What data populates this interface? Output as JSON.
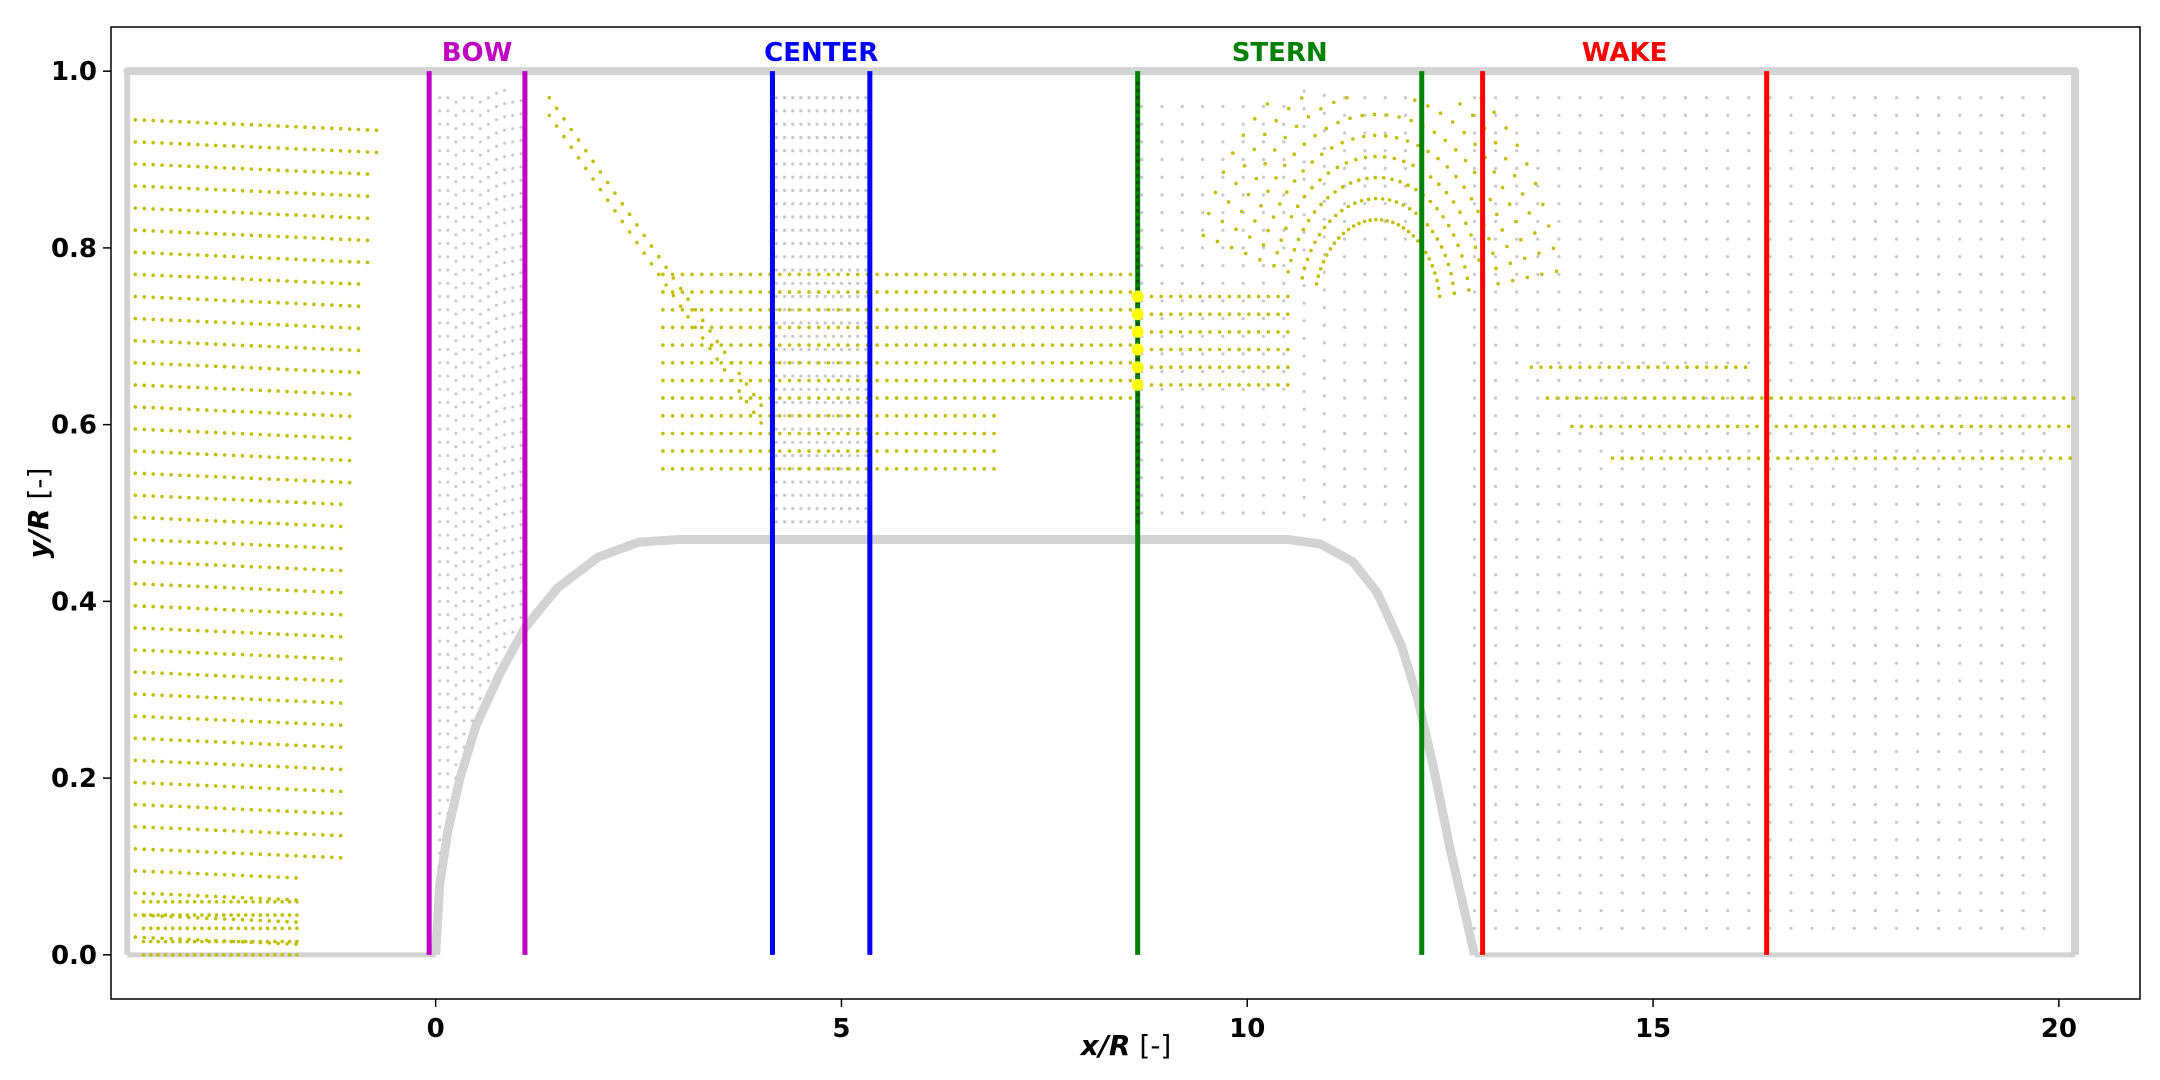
{
  "chart_data": {
    "type": "scatter",
    "title": "",
    "xlabel_var": "x/R",
    "xlabel_unit": " [-]",
    "ylabel_var": "y/R",
    "ylabel_unit": " [-]",
    "xlim": [
      -4.0,
      21.0
    ],
    "ylim": [
      -0.05,
      1.05
    ],
    "xticks": [
      0,
      5,
      10,
      15,
      20
    ],
    "yticks": [
      0.0,
      0.2,
      0.4,
      0.6,
      0.8,
      1.0
    ],
    "xtick_labels": [
      "0",
      "5",
      "10",
      "15",
      "20"
    ],
    "ytick_labels": [
      "0.0",
      "0.2",
      "0.4",
      "0.6",
      "0.8",
      "1.0"
    ],
    "grid": false,
    "colors": {
      "domain_boundary": "#d3d3d3",
      "grid_points": "#c8c8c8",
      "particles": "#bfbf00",
      "probe_points": "#ffff00",
      "probe_line": "#005000"
    },
    "domain": {
      "x_min": -3.8,
      "x_max": 20.2,
      "y_min": 0.0,
      "y_max": 1.0,
      "hull_radius": 0.47,
      "hull_profile": [
        [
          0.0,
          0.0
        ],
        [
          0.05,
          0.08
        ],
        [
          0.15,
          0.14
        ],
        [
          0.3,
          0.2
        ],
        [
          0.5,
          0.26
        ],
        [
          0.8,
          0.32
        ],
        [
          1.1,
          0.37
        ],
        [
          1.5,
          0.415
        ],
        [
          2.0,
          0.45
        ],
        [
          2.5,
          0.467
        ],
        [
          3.0,
          0.47
        ],
        [
          10.5,
          0.47
        ],
        [
          10.9,
          0.465
        ],
        [
          11.3,
          0.445
        ],
        [
          11.6,
          0.41
        ],
        [
          11.9,
          0.35
        ],
        [
          12.1,
          0.29
        ],
        [
          12.3,
          0.21
        ],
        [
          12.5,
          0.12
        ],
        [
          12.7,
          0.04
        ],
        [
          12.8,
          0.0
        ]
      ]
    },
    "regions": [
      {
        "name": "BOW",
        "x_start": -0.08,
        "x_end": 1.1,
        "color": "#c000c0"
      },
      {
        "name": "CENTER",
        "x_start": 4.15,
        "x_end": 5.35,
        "color": "#0000ff"
      },
      {
        "name": "STERN",
        "x_start": 8.65,
        "x_end": 12.15,
        "color": "#008000"
      },
      {
        "name": "WAKE",
        "x_start": 12.9,
        "x_end": 16.4,
        "color": "#ff0000"
      }
    ],
    "probe": {
      "x": 8.65,
      "y_values": [
        0.645,
        0.665,
        0.685,
        0.705,
        0.725,
        0.745
      ]
    }
  }
}
